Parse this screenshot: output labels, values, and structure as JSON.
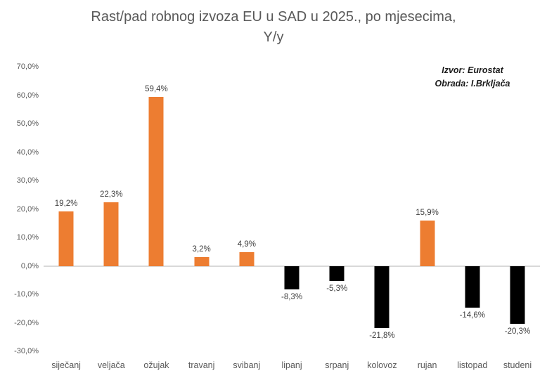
{
  "chart_data": {
    "type": "bar",
    "title": "Rast/pad robnog izvoza EU u SAD u 2025., po mjesecima, Y/y",
    "title_lines": [
      "Rast/pad robnog izvoza EU u SAD u 2025., po mjesecima,",
      "Y/y"
    ],
    "source_lines": [
      "Izvor: Eurostat",
      "Obrada: I.Brkljača"
    ],
    "categories": [
      "siječanj",
      "veljača",
      "ožujak",
      "travanj",
      "svibanj",
      "lipanj",
      "srpanj",
      "kolovoz",
      "rujan",
      "listopad",
      "studeni"
    ],
    "values": [
      19.2,
      22.3,
      59.4,
      3.2,
      4.9,
      -8.3,
      -5.3,
      -21.8,
      15.9,
      -14.6,
      -20.3
    ],
    "value_labels": [
      "19,2%",
      "22,3%",
      "59,4%",
      "3,2%",
      "4,9%",
      "-8,3%",
      "-5,3%",
      "-21,8%",
      "15,9%",
      "-14,6%",
      "-20,3%"
    ],
    "xlabel": "",
    "ylabel": "",
    "ylim": [
      -30,
      70
    ],
    "ytick_step": 10,
    "yticks": [
      "70,0%",
      "60,0%",
      "50,0%",
      "40,0%",
      "30,0%",
      "20,0%",
      "10,0%",
      "0,0%",
      "-10,0%",
      "-20,0%",
      "-30,0%"
    ],
    "grid": false,
    "legend": "none",
    "colors": {
      "positive_bar": "#ED7D31",
      "negative_bar": "#000000",
      "axis_line": "#D9D9D9",
      "axis_text": "#595959",
      "data_label_text": "#404040",
      "title_text": "#595959",
      "background": "#FFFFFF"
    }
  }
}
